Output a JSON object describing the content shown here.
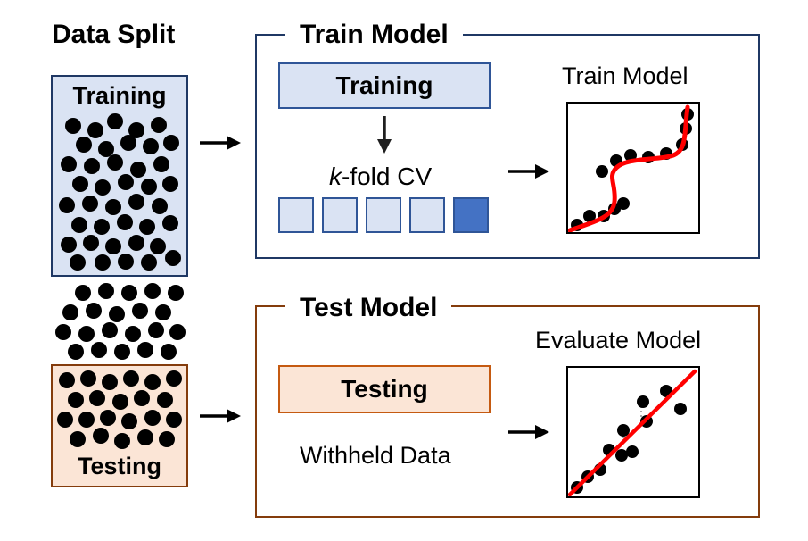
{
  "split": {
    "title": "Data Split",
    "training_label": "Training",
    "testing_label": "Testing"
  },
  "train_panel": {
    "title": "Train Model",
    "training_label": "Training",
    "cv_label_k": "k",
    "cv_label_rest": "-fold CV",
    "cv_fold_count": 5,
    "cv_active_fold": 5,
    "plot_label": "Train Model"
  },
  "test_panel": {
    "title": "Test Model",
    "testing_label": "Testing",
    "withheld_label": "Withheld Data",
    "plot_label": "Evaluate Model"
  },
  "colors": {
    "navy_frame": "#1f3864",
    "blue_fill": "#dae3f3",
    "blue_border": "#2f5597",
    "active_fold": "#4472c4",
    "orange_fill": "#fbe5d6",
    "orange_border": "#c55a11",
    "brown_frame": "#843c0c",
    "fit_line": "#ff0000"
  }
}
